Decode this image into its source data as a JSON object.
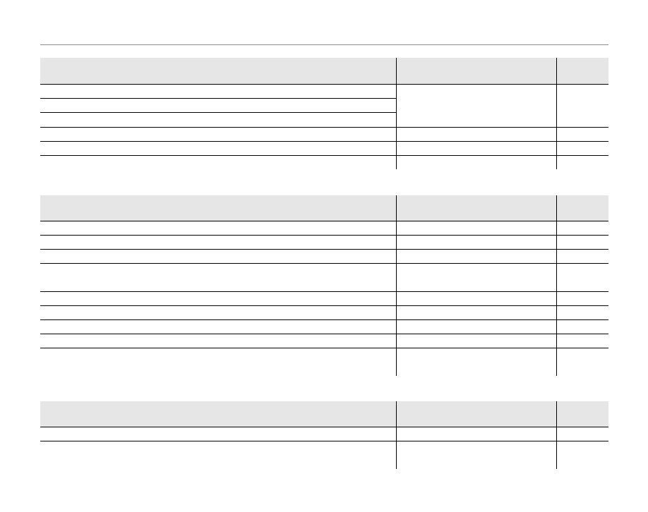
{
  "colors": {
    "header_fill": "#e6e6e6",
    "rule": "#000000"
  }
}
